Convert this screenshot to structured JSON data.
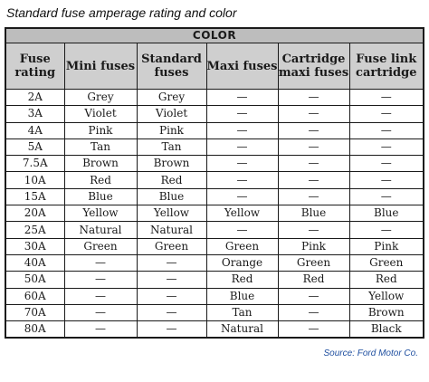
{
  "title": "Standard fuse amperage rating and color",
  "group_header": "COLOR",
  "columns": [
    "Fuse rating",
    "Mini fuses",
    "Standard fuses",
    "Maxi fuses",
    "Cartridge maxi fuses",
    "Fuse link cartridge"
  ],
  "rows": [
    [
      "2A",
      "Grey",
      "Grey",
      "—",
      "—",
      "—"
    ],
    [
      "3A",
      "Violet",
      "Violet",
      "—",
      "—",
      "—"
    ],
    [
      "4A",
      "Pink",
      "Pink",
      "—",
      "—",
      "—"
    ],
    [
      "5A",
      "Tan",
      "Tan",
      "—",
      "—",
      "—"
    ],
    [
      "7.5A",
      "Brown",
      "Brown",
      "—",
      "—",
      "—"
    ],
    [
      "10A",
      "Red",
      "Red",
      "—",
      "—",
      "—"
    ],
    [
      "15A",
      "Blue",
      "Blue",
      "—",
      "—",
      "—"
    ],
    [
      "20A",
      "Yellow",
      "Yellow",
      "Yellow",
      "Blue",
      "Blue"
    ],
    [
      "25A",
      "Natural",
      "Natural",
      "—",
      "—",
      "—"
    ],
    [
      "30A",
      "Green",
      "Green",
      "Green",
      "Pink",
      "Pink"
    ],
    [
      "40A",
      "—",
      "—",
      "Orange",
      "Green",
      "Green"
    ],
    [
      "50A",
      "—",
      "—",
      "Red",
      "Red",
      "Red"
    ],
    [
      "60A",
      "—",
      "—",
      "Blue",
      "—",
      "Yellow"
    ],
    [
      "70A",
      "—",
      "—",
      "Tan",
      "—",
      "Brown"
    ],
    [
      "80A",
      "—",
      "—",
      "Natural",
      "—",
      "Black"
    ]
  ],
  "source": "Source: Ford Motor Co."
}
